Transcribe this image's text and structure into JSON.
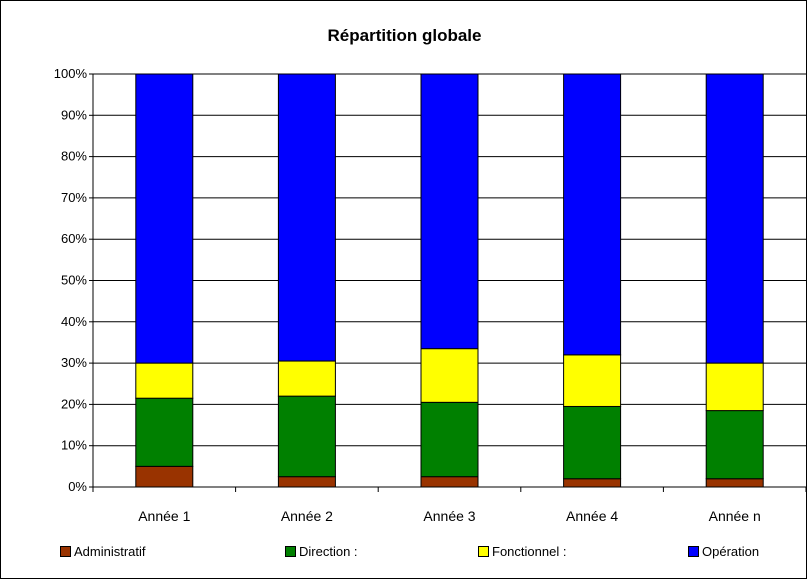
{
  "chart_data": {
    "type": "bar",
    "stacked": "percent",
    "title": "Répartition globale",
    "categories": [
      "Année 1",
      "Année 2",
      "Année 3",
      "Année 4",
      "Année n"
    ],
    "series": [
      {
        "name": "Administratif",
        "color": "#993300",
        "values": [
          5,
          2.5,
          2.5,
          2,
          2
        ]
      },
      {
        "name": "Direction :",
        "color": "#008000",
        "values": [
          16.5,
          19.5,
          18,
          17.5,
          16.5
        ]
      },
      {
        "name": "Fonctionnel :",
        "color": "#ffff00",
        "values": [
          8.5,
          8.5,
          13,
          12.5,
          11.5
        ]
      },
      {
        "name": "Opération",
        "color": "#0000ff",
        "values": [
          70,
          69.5,
          66.5,
          68,
          70
        ]
      }
    ],
    "ylim": [
      0,
      100
    ],
    "yticks": [
      "0%",
      "10%",
      "20%",
      "30%",
      "40%",
      "50%",
      "60%",
      "70%",
      "80%",
      "90%",
      "100%"
    ],
    "grid": true,
    "legend": "bottom"
  }
}
